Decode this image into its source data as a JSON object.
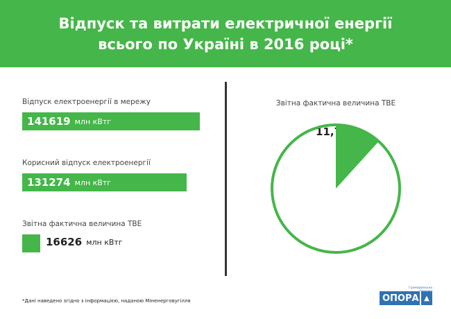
{
  "title": "Відпуск та витрати електричної енергії всього по Україні в 2016 році*",
  "colors": {
    "accent": "#45b649",
    "text": "#333333",
    "logo": "#2f72b3"
  },
  "chart_data": [
    {
      "type": "bar",
      "unit": "млн кВтг",
      "max_ref": 141619,
      "items": [
        {
          "label": "Відпуск електроенергії в мережу",
          "value": "141619",
          "numeric": 141619
        },
        {
          "label": "Корисний відпуск електроенергії",
          "value": "131274",
          "numeric": 131274
        },
        {
          "label": "Звітна фактична величина ТВЕ",
          "value": "16626",
          "numeric": 16626
        }
      ]
    },
    {
      "type": "pie",
      "title": "Звітна фактична величина ТВЕ",
      "value_label": "11,74",
      "percent_sign": "%",
      "value": 11.74
    }
  ],
  "footnote": "*Дані наведено згідно з інформацією, наданою Міненерговугілля",
  "logo": {
    "text": "ОПОРА",
    "subtitle": "Громадянська мережа"
  }
}
